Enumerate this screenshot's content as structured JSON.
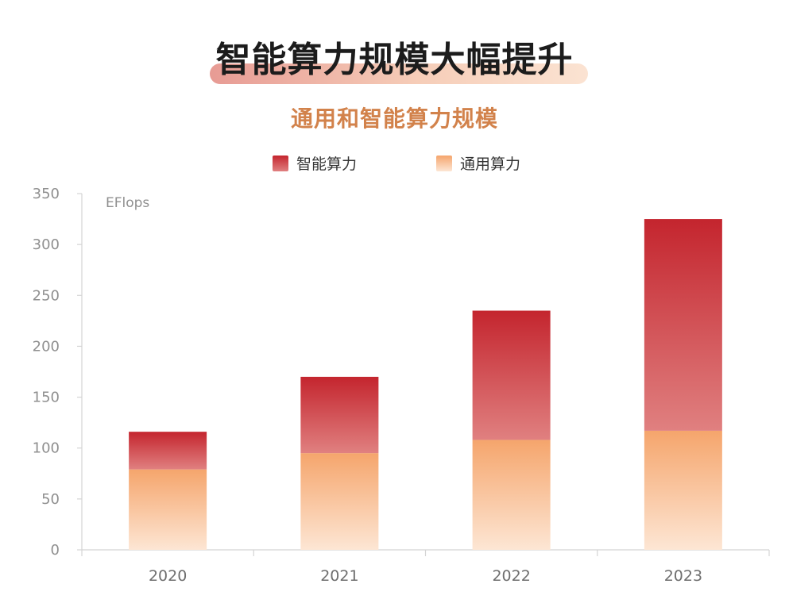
{
  "headline": "智能算力规模大幅提升",
  "chart_data": {
    "type": "bar",
    "stacked": true,
    "title": "通用和智能算力规模",
    "unit": "EFlops",
    "categories": [
      "2020",
      "2021",
      "2022",
      "2023"
    ],
    "series": [
      {
        "name": "智能算力",
        "values": [
          37,
          75,
          127,
          208
        ],
        "color_top": "#c4252e",
        "color_bottom": "#e08080"
      },
      {
        "name": "通用算力",
        "values": [
          79,
          95,
          108,
          117
        ],
        "color_top": "#f5a56c",
        "color_bottom": "#fde6d4"
      }
    ],
    "ylim": [
      0,
      350
    ],
    "yticks": [
      0,
      50,
      100,
      150,
      200,
      250,
      300,
      350
    ],
    "legend_position": "top-center",
    "grid": false
  }
}
